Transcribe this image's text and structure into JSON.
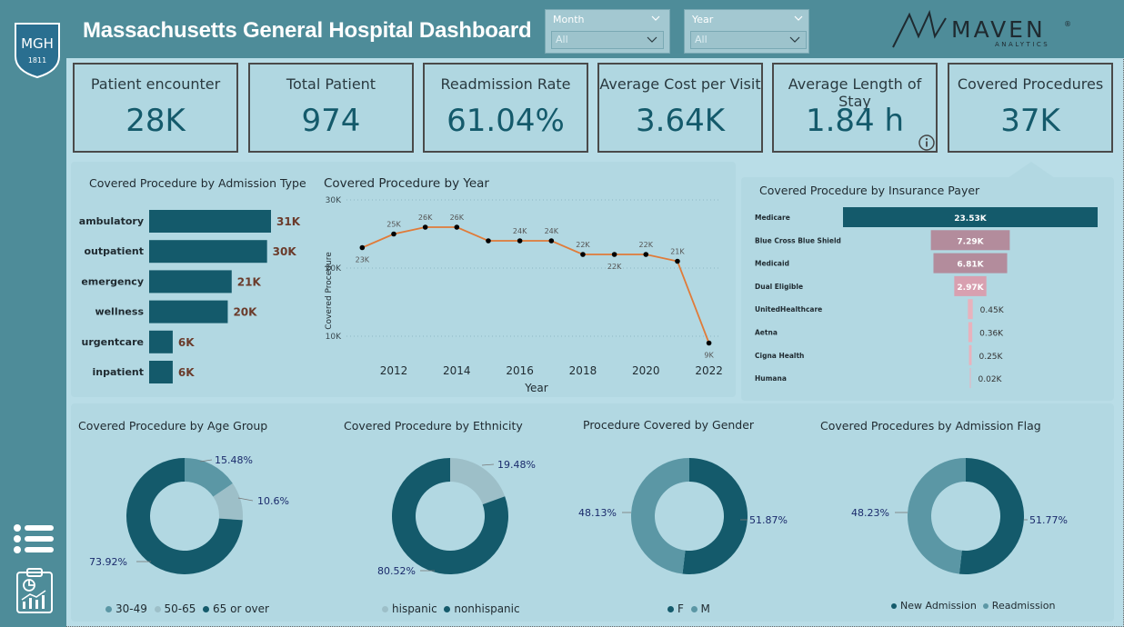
{
  "header": {
    "title": "Massachusetts General Hospital Dashboard",
    "logo_text": "MGH",
    "logo_year": "1811",
    "brand": "MAVEN",
    "brand_sub": "ANALYTICS"
  },
  "slicers": [
    {
      "label": "Month",
      "value": "All"
    },
    {
      "label": "Year",
      "value": "All"
    }
  ],
  "kpis": [
    {
      "label": "Patient encounter",
      "value": "28K"
    },
    {
      "label": "Total Patient",
      "value": "974"
    },
    {
      "label": "Readmission Rate",
      "value": "61.04%"
    },
    {
      "label": "Average Cost per Visit",
      "value": "3.64K"
    },
    {
      "label": "Average Length of Stay",
      "value": "1.84 h"
    },
    {
      "label": "Covered Procedures",
      "value": "37K"
    }
  ],
  "chart_data": [
    {
      "type": "bar",
      "title": "Covered Procedure by Admission Type",
      "categories": [
        "ambulatory",
        "outpatient",
        "emergency",
        "wellness",
        "urgentcare",
        "inpatient"
      ],
      "values": [
        31,
        30,
        21,
        20,
        6,
        6
      ],
      "labels": [
        "31K",
        "30K",
        "21K",
        "20K",
        "6K",
        "6K"
      ],
      "color": "#145a6b"
    },
    {
      "type": "line",
      "title": "Covered Procedure by Year",
      "xlabel": "Year",
      "ylabel": "Covered Procedure",
      "x": [
        2011,
        2012,
        2013,
        2014,
        2015,
        2016,
        2017,
        2018,
        2019,
        2020,
        2021,
        2022
      ],
      "values": [
        23,
        25,
        26,
        26,
        24,
        24,
        24,
        22,
        22,
        22,
        21,
        9
      ],
      "labels": [
        "23K",
        "25K",
        "26K",
        "26K",
        "",
        "24K",
        "24K",
        "22K",
        "22K",
        "22K",
        "21K",
        "9K"
      ],
      "xticks": [
        2012,
        2014,
        2016,
        2018,
        2020,
        2022
      ],
      "yticks": [
        {
          "v": 30,
          "t": "30K"
        },
        {
          "v": 20,
          "t": "20K"
        },
        {
          "v": 10,
          "t": "10K"
        }
      ],
      "ylim": [
        6,
        30
      ],
      "xlim": [
        2010.5,
        2022.3
      ],
      "color": "#e07b39"
    },
    {
      "type": "bar",
      "title": "Covered Procedure by Insurance Payer",
      "categories": [
        "Medicare",
        "Blue Cross Blue Shield",
        "Medicaid",
        "Dual Eligible",
        "UnitedHealthcare",
        "Aetna",
        "Cigna Health",
        "Humana"
      ],
      "values": [
        23.53,
        7.29,
        6.81,
        2.97,
        0.45,
        0.36,
        0.25,
        0.02
      ],
      "labels": [
        "23.53K",
        "7.29K",
        "6.81K",
        "2.97K",
        "0.45K",
        "0.36K",
        "0.25K",
        "0.02K"
      ],
      "colors": [
        "#145a6b",
        "#b38c9c",
        "#b38c9c",
        "#d8a0b0",
        "#e8b2bd",
        "#e8b2bd",
        "#e8b2bd",
        "#e8b2bd"
      ]
    },
    {
      "type": "pie",
      "title": "Covered Procedure by Age Group",
      "categories": [
        "30-49",
        "50-65",
        "65 or over"
      ],
      "values": [
        15.48,
        10.6,
        73.92
      ],
      "labels": [
        "15.48%",
        "10.6%",
        "73.92%"
      ],
      "colors": [
        "#5b97a5",
        "#9dbfc8",
        "#145a6b"
      ]
    },
    {
      "type": "pie",
      "title": "Covered Procedure by Ethnicity",
      "categories": [
        "hispanic",
        "nonhispanic"
      ],
      "values": [
        19.48,
        80.52
      ],
      "labels": [
        "19.48%",
        "80.52%"
      ],
      "colors": [
        "#9dbfc8",
        "#145a6b"
      ]
    },
    {
      "type": "pie",
      "title": "Procedure Covered by Gender",
      "categories": [
        "F",
        "M"
      ],
      "values": [
        51.87,
        48.13
      ],
      "labels": [
        "51.87%",
        "48.13%"
      ],
      "colors": [
        "#145a6b",
        "#5b97a5"
      ]
    },
    {
      "type": "pie",
      "title": "Covered Procedures by Admission Flag",
      "categories": [
        "New Admission",
        "Readmission"
      ],
      "values": [
        51.77,
        48.23
      ],
      "labels": [
        "51.77%",
        "48.23%"
      ],
      "colors": [
        "#145a6b",
        "#5b97a5"
      ]
    }
  ]
}
